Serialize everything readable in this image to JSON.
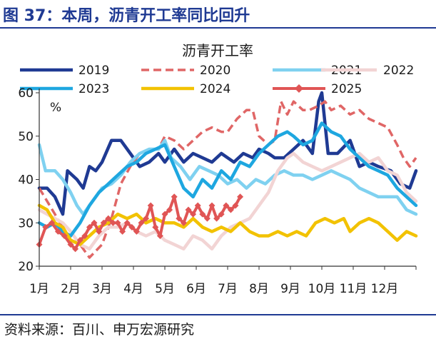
{
  "figure_title": "图 37：本周，沥青开工率同比回升",
  "source": "资料来源：百川、申万宏源研究",
  "chart_data": {
    "type": "line",
    "title": "沥青开工率",
    "ylabel": "%",
    "xlabel": "",
    "ylim": [
      20,
      60
    ],
    "yticks": [
      20,
      30,
      40,
      50,
      60
    ],
    "xlim": [
      1,
      13
    ],
    "month_ticks": [
      {
        "x": 1,
        "label": "1月"
      },
      {
        "x": 2,
        "label": "2月"
      },
      {
        "x": 3,
        "label": "3月"
      },
      {
        "x": 4,
        "label": "4月"
      },
      {
        "x": 5,
        "label": "5月"
      },
      {
        "x": 6,
        "label": "6月"
      },
      {
        "x": 7,
        "label": "7月"
      },
      {
        "x": 8,
        "label": "8月"
      },
      {
        "x": 9,
        "label": "9月"
      },
      {
        "x": 10,
        "label": "10月"
      },
      {
        "x": 11,
        "label": "11月"
      },
      {
        "x": 12,
        "label": "12月"
      }
    ],
    "grid": false,
    "legend_position": "top",
    "series": [
      {
        "name": "2019",
        "color": "#1f3a93",
        "dash": "solid",
        "width": 4.5,
        "marker": "none",
        "points": [
          [
            1.0,
            38
          ],
          [
            1.25,
            38
          ],
          [
            1.5,
            36
          ],
          [
            1.75,
            32
          ],
          [
            1.9,
            42
          ],
          [
            2.2,
            40
          ],
          [
            2.4,
            38
          ],
          [
            2.6,
            43
          ],
          [
            2.8,
            42
          ],
          [
            3.0,
            44
          ],
          [
            3.3,
            49
          ],
          [
            3.6,
            49
          ],
          [
            3.9,
            46
          ],
          [
            4.2,
            43
          ],
          [
            4.5,
            44
          ],
          [
            4.8,
            46
          ],
          [
            5.0,
            44
          ],
          [
            5.3,
            47
          ],
          [
            5.6,
            44
          ],
          [
            5.9,
            46
          ],
          [
            6.2,
            45
          ],
          [
            6.5,
            44
          ],
          [
            6.8,
            46
          ],
          [
            7.2,
            44
          ],
          [
            7.5,
            46
          ],
          [
            7.8,
            45
          ],
          [
            8.0,
            47
          ],
          [
            8.3,
            46
          ],
          [
            8.5,
            45
          ],
          [
            8.8,
            45
          ],
          [
            9.1,
            47
          ],
          [
            9.4,
            49
          ],
          [
            9.7,
            46
          ],
          [
            9.9,
            58
          ],
          [
            10.0,
            60
          ],
          [
            10.2,
            46
          ],
          [
            10.5,
            46
          ],
          [
            10.9,
            49
          ],
          [
            11.2,
            43
          ],
          [
            11.5,
            44
          ],
          [
            11.8,
            43
          ],
          [
            12.2,
            42
          ],
          [
            12.5,
            39
          ],
          [
            12.8,
            38
          ],
          [
            13.0,
            42
          ]
        ]
      },
      {
        "name": "2020",
        "color": "#e06666",
        "dash": "dash",
        "width": 3.5,
        "marker": "none",
        "points": [
          [
            1.0,
            38
          ],
          [
            1.25,
            35
          ],
          [
            1.5,
            32
          ],
          [
            1.75,
            29
          ],
          [
            2.0,
            26
          ],
          [
            2.3,
            25
          ],
          [
            2.6,
            22
          ],
          [
            3.0,
            25
          ],
          [
            3.3,
            31
          ],
          [
            3.6,
            39
          ],
          [
            3.9,
            43
          ],
          [
            4.2,
            46
          ],
          [
            4.5,
            47
          ],
          [
            4.8,
            47
          ],
          [
            5.0,
            50
          ],
          [
            5.3,
            49
          ],
          [
            5.6,
            47
          ],
          [
            5.9,
            49
          ],
          [
            6.2,
            51
          ],
          [
            6.5,
            52
          ],
          [
            6.8,
            51
          ],
          [
            7.0,
            51
          ],
          [
            7.3,
            54
          ],
          [
            7.6,
            56
          ],
          [
            7.8,
            56
          ],
          [
            8.0,
            50
          ],
          [
            8.3,
            48
          ],
          [
            8.5,
            49
          ],
          [
            8.7,
            58
          ],
          [
            8.9,
            55
          ],
          [
            9.1,
            58
          ],
          [
            9.4,
            56
          ],
          [
            9.6,
            56
          ],
          [
            9.9,
            57
          ],
          [
            10.1,
            58
          ],
          [
            10.3,
            56
          ],
          [
            10.6,
            57
          ],
          [
            10.9,
            55
          ],
          [
            11.2,
            56
          ],
          [
            11.5,
            54
          ],
          [
            11.8,
            53
          ],
          [
            12.1,
            52
          ],
          [
            12.4,
            48
          ],
          [
            12.6,
            45
          ],
          [
            12.8,
            43
          ],
          [
            13.0,
            45
          ]
        ]
      },
      {
        "name": "2021",
        "color": "#7fd1f0",
        "dash": "solid",
        "width": 4.5,
        "marker": "none",
        "points": [
          [
            1.0,
            48
          ],
          [
            1.2,
            42
          ],
          [
            1.5,
            42
          ],
          [
            1.75,
            40
          ],
          [
            2.0,
            37
          ],
          [
            2.2,
            34
          ],
          [
            2.4,
            32
          ],
          [
            2.6,
            34
          ],
          [
            2.8,
            36
          ],
          [
            3.0,
            38
          ],
          [
            3.3,
            39
          ],
          [
            3.6,
            41
          ],
          [
            3.9,
            44
          ],
          [
            4.2,
            46
          ],
          [
            4.5,
            47
          ],
          [
            4.8,
            47
          ],
          [
            5.0,
            49
          ],
          [
            5.2,
            45
          ],
          [
            5.5,
            43
          ],
          [
            5.8,
            40
          ],
          [
            6.1,
            43
          ],
          [
            6.4,
            42
          ],
          [
            6.7,
            41
          ],
          [
            7.0,
            39
          ],
          [
            7.3,
            40
          ],
          [
            7.6,
            38
          ],
          [
            7.9,
            40
          ],
          [
            8.2,
            39
          ],
          [
            8.5,
            41
          ],
          [
            8.8,
            42
          ],
          [
            9.1,
            41
          ],
          [
            9.4,
            41
          ],
          [
            9.7,
            40
          ],
          [
            10.0,
            41
          ],
          [
            10.3,
            42
          ],
          [
            10.6,
            41
          ],
          [
            10.9,
            40
          ],
          [
            11.2,
            38
          ],
          [
            11.5,
            37
          ],
          [
            11.8,
            36
          ],
          [
            12.1,
            36
          ],
          [
            12.4,
            36
          ],
          [
            12.7,
            33
          ],
          [
            13.0,
            32
          ]
        ]
      },
      {
        "name": "2022",
        "color": "#f2d4d4",
        "dash": "solid",
        "width": 4.5,
        "marker": "none",
        "points": [
          [
            1.0,
            33
          ],
          [
            1.25,
            32
          ],
          [
            1.5,
            31
          ],
          [
            1.75,
            30
          ],
          [
            2.0,
            28
          ],
          [
            2.3,
            25
          ],
          [
            2.6,
            24
          ],
          [
            2.9,
            27
          ],
          [
            3.2,
            29
          ],
          [
            3.5,
            29
          ],
          [
            3.8,
            30
          ],
          [
            4.1,
            28
          ],
          [
            4.4,
            27
          ],
          [
            4.7,
            28
          ],
          [
            5.0,
            26
          ],
          [
            5.3,
            25
          ],
          [
            5.6,
            24
          ],
          [
            5.9,
            27
          ],
          [
            6.2,
            26
          ],
          [
            6.5,
            24
          ],
          [
            6.8,
            27
          ],
          [
            7.1,
            29
          ],
          [
            7.4,
            30
          ],
          [
            7.7,
            31
          ],
          [
            8.0,
            34
          ],
          [
            8.3,
            37
          ],
          [
            8.6,
            42
          ],
          [
            8.9,
            45
          ],
          [
            9.1,
            46
          ],
          [
            9.4,
            44
          ],
          [
            9.7,
            43
          ],
          [
            10.0,
            42
          ],
          [
            10.3,
            43
          ],
          [
            10.6,
            44
          ],
          [
            10.9,
            45
          ],
          [
            11.2,
            46
          ],
          [
            11.5,
            44
          ],
          [
            11.8,
            45
          ],
          [
            12.1,
            42
          ],
          [
            12.4,
            41
          ],
          [
            12.7,
            37
          ],
          [
            13.0,
            35
          ]
        ]
      },
      {
        "name": "2023",
        "color": "#1ea7e0",
        "dash": "solid",
        "width": 4.5,
        "marker": "none",
        "points": [
          [
            1.0,
            30
          ],
          [
            1.25,
            29
          ],
          [
            1.5,
            30
          ],
          [
            1.75,
            28
          ],
          [
            2.0,
            27
          ],
          [
            2.3,
            30
          ],
          [
            2.6,
            34
          ],
          [
            2.9,
            37
          ],
          [
            3.2,
            39
          ],
          [
            3.5,
            41
          ],
          [
            3.8,
            43
          ],
          [
            4.1,
            44
          ],
          [
            4.4,
            46
          ],
          [
            4.7,
            47
          ],
          [
            5.0,
            48
          ],
          [
            5.3,
            43
          ],
          [
            5.6,
            38
          ],
          [
            5.9,
            36
          ],
          [
            6.2,
            40
          ],
          [
            6.5,
            38
          ],
          [
            6.8,
            42
          ],
          [
            7.1,
            40
          ],
          [
            7.4,
            44
          ],
          [
            7.7,
            43
          ],
          [
            8.0,
            46
          ],
          [
            8.3,
            48
          ],
          [
            8.6,
            50
          ],
          [
            8.9,
            51
          ],
          [
            9.1,
            50
          ],
          [
            9.4,
            48
          ],
          [
            9.7,
            49
          ],
          [
            10.0,
            53
          ],
          [
            10.3,
            51
          ],
          [
            10.6,
            50
          ],
          [
            10.9,
            47
          ],
          [
            11.2,
            45
          ],
          [
            11.5,
            43
          ],
          [
            11.8,
            42
          ],
          [
            12.1,
            41
          ],
          [
            12.4,
            38
          ],
          [
            12.7,
            36
          ],
          [
            13.0,
            34
          ]
        ]
      },
      {
        "name": "2024",
        "color": "#f2c200",
        "dash": "solid",
        "width": 4.5,
        "marker": "none",
        "points": [
          [
            1.0,
            34
          ],
          [
            1.25,
            33
          ],
          [
            1.5,
            30
          ],
          [
            1.75,
            29
          ],
          [
            2.0,
            26
          ],
          [
            2.3,
            25
          ],
          [
            2.6,
            27
          ],
          [
            2.9,
            29
          ],
          [
            3.2,
            30
          ],
          [
            3.5,
            32
          ],
          [
            3.8,
            31
          ],
          [
            4.1,
            32
          ],
          [
            4.4,
            30
          ],
          [
            4.7,
            31
          ],
          [
            5.0,
            30
          ],
          [
            5.3,
            30
          ],
          [
            5.6,
            29
          ],
          [
            5.9,
            31
          ],
          [
            6.2,
            29
          ],
          [
            6.5,
            28
          ],
          [
            6.8,
            29
          ],
          [
            7.1,
            28
          ],
          [
            7.4,
            30
          ],
          [
            7.7,
            28
          ],
          [
            8.0,
            27
          ],
          [
            8.3,
            27
          ],
          [
            8.6,
            28
          ],
          [
            8.9,
            27
          ],
          [
            9.2,
            28
          ],
          [
            9.5,
            27
          ],
          [
            9.8,
            30
          ],
          [
            10.1,
            31
          ],
          [
            10.4,
            30
          ],
          [
            10.7,
            31
          ],
          [
            10.9,
            28
          ],
          [
            11.2,
            30
          ],
          [
            11.5,
            31
          ],
          [
            11.8,
            30
          ],
          [
            12.1,
            28
          ],
          [
            12.4,
            26
          ],
          [
            12.7,
            28
          ],
          [
            13.0,
            27
          ]
        ]
      },
      {
        "name": "2025",
        "color": "#e05555",
        "dash": "solid",
        "width": 4,
        "marker": "diamond",
        "points": [
          [
            1.0,
            25
          ],
          [
            1.2,
            29
          ],
          [
            1.4,
            30
          ],
          [
            1.6,
            28
          ],
          [
            1.8,
            27
          ],
          [
            2.0,
            25
          ],
          [
            2.15,
            24
          ],
          [
            2.3,
            26
          ],
          [
            2.45,
            27
          ],
          [
            2.6,
            29
          ],
          [
            2.75,
            30
          ],
          [
            2.9,
            28
          ],
          [
            3.05,
            30
          ],
          [
            3.2,
            31
          ],
          [
            3.35,
            30
          ],
          [
            3.5,
            30
          ],
          [
            3.65,
            28
          ],
          [
            3.8,
            30
          ],
          [
            3.95,
            29
          ],
          [
            4.1,
            28
          ],
          [
            4.25,
            30
          ],
          [
            4.4,
            31
          ],
          [
            4.55,
            34
          ],
          [
            4.7,
            29
          ],
          [
            4.85,
            27
          ],
          [
            5.0,
            32
          ],
          [
            5.15,
            33
          ],
          [
            5.3,
            36
          ],
          [
            5.45,
            31
          ],
          [
            5.6,
            30
          ],
          [
            5.75,
            33
          ],
          [
            5.9,
            32
          ],
          [
            6.05,
            34
          ],
          [
            6.2,
            32
          ],
          [
            6.35,
            31
          ],
          [
            6.5,
            34
          ],
          [
            6.65,
            31
          ],
          [
            6.8,
            32
          ],
          [
            6.95,
            34
          ],
          [
            7.1,
            33
          ],
          [
            7.25,
            34
          ],
          [
            7.4,
            36
          ]
        ]
      }
    ]
  }
}
